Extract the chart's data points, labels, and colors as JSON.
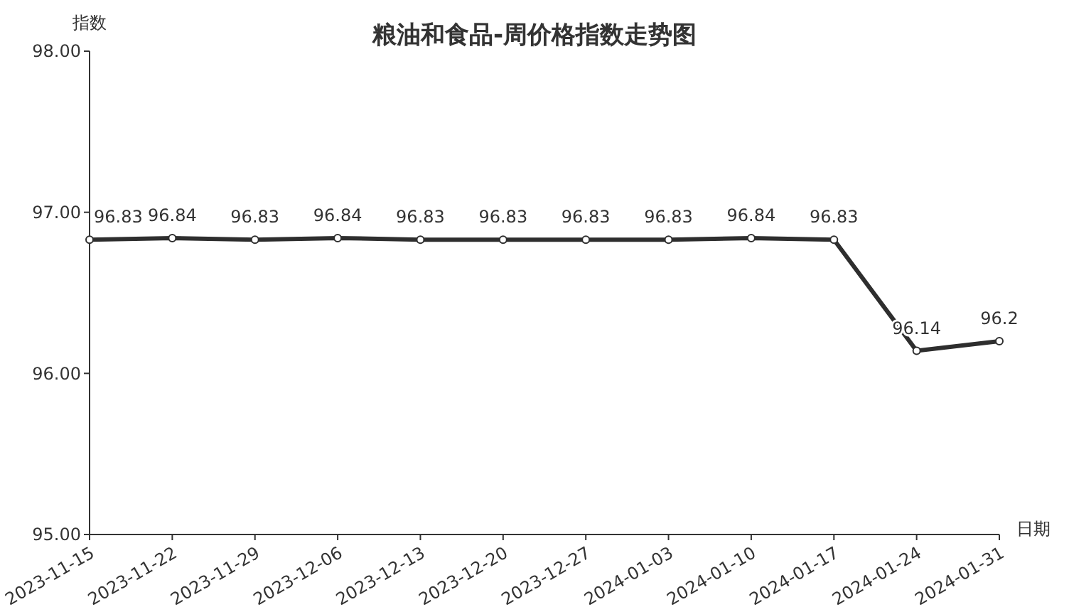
{
  "chart_data": {
    "type": "line",
    "title": "粮油和食品-周价格指数走势图",
    "xlabel": "日期",
    "ylabel": "指数",
    "categories": [
      "2023-11-15",
      "2023-11-22",
      "2023-11-29",
      "2023-12-06",
      "2023-12-13",
      "2023-12-20",
      "2023-12-27",
      "2024-01-03",
      "2024-01-10",
      "2024-01-17",
      "2024-01-24",
      "2024-01-31"
    ],
    "series": [
      {
        "color": "#2e2e2e",
        "values": [
          96.83,
          96.84,
          96.83,
          96.84,
          96.83,
          96.83,
          96.83,
          96.83,
          96.84,
          96.83,
          96.14,
          96.2
        ]
      }
    ],
    "ylim": [
      95,
      98
    ],
    "yticks": [
      {
        "value": 95,
        "label": "95.00"
      },
      {
        "value": 96,
        "label": "96.00"
      },
      {
        "value": 97,
        "label": "97.00"
      },
      {
        "value": 98,
        "label": "98.00"
      }
    ],
    "data_labels": true,
    "marker": "circle",
    "line_style": "solid",
    "grid": false
  }
}
